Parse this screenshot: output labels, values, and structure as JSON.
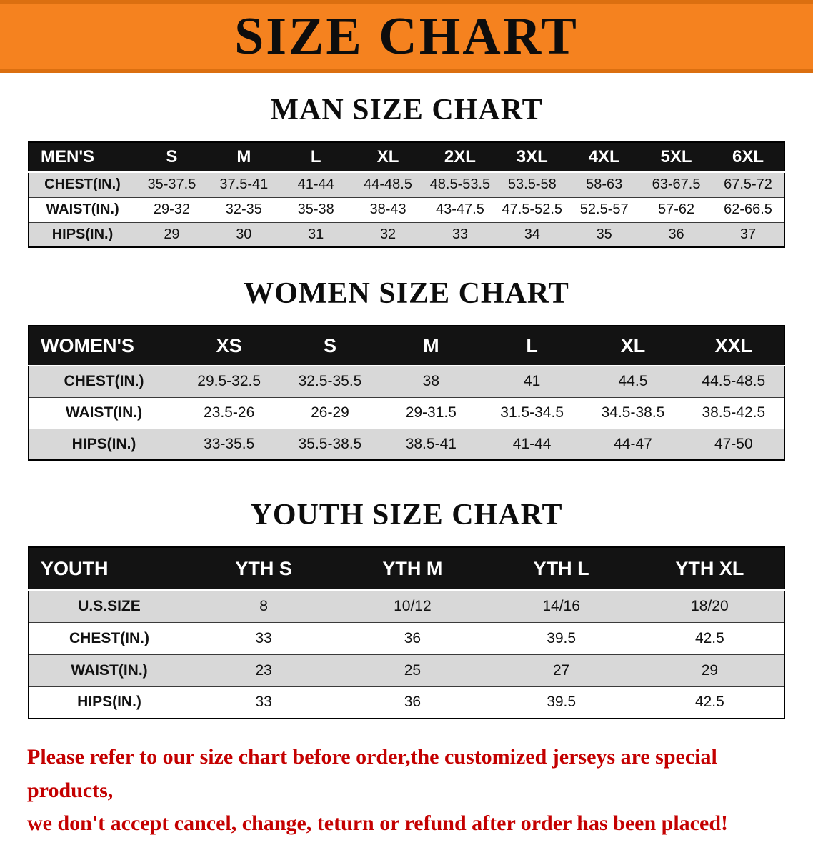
{
  "banner": {
    "title": "SIZE CHART"
  },
  "sections": [
    {
      "heading": "MAN SIZE CHART",
      "table": {
        "header": [
          "MEN'S",
          "S",
          "M",
          "L",
          "XL",
          "2XL",
          "3XL",
          "4XL",
          "5XL",
          "6XL"
        ],
        "rows": [
          [
            "CHEST(IN.)",
            "35-37.5",
            "37.5-41",
            "41-44",
            "44-48.5",
            "48.5-53.5",
            "53.5-58",
            "58-63",
            "63-67.5",
            "67.5-72"
          ],
          [
            "WAIST(IN.)",
            "29-32",
            "32-35",
            "35-38",
            "38-43",
            "43-47.5",
            "47.5-52.5",
            "52.5-57",
            "57-62",
            "62-66.5"
          ],
          [
            "HIPS(IN.)",
            "29",
            "30",
            "31",
            "32",
            "33",
            "34",
            "35",
            "36",
            "37"
          ]
        ]
      }
    },
    {
      "heading": "WOMEN SIZE CHART",
      "table": {
        "header": [
          "WOMEN'S",
          "XS",
          "S",
          "M",
          "L",
          "XL",
          "XXL"
        ],
        "rows": [
          [
            "CHEST(IN.)",
            "29.5-32.5",
            "32.5-35.5",
            "38",
            "41",
            "44.5",
            "44.5-48.5"
          ],
          [
            "WAIST(IN.)",
            "23.5-26",
            "26-29",
            "29-31.5",
            "31.5-34.5",
            "34.5-38.5",
            "38.5-42.5"
          ],
          [
            "HIPS(IN.)",
            "33-35.5",
            "35.5-38.5",
            "38.5-41",
            "41-44",
            "44-47",
            "47-50"
          ]
        ]
      }
    },
    {
      "heading": "YOUTH SIZE CHART",
      "table": {
        "header": [
          "YOUTH",
          "YTH S",
          "YTH M",
          "YTH L",
          "YTH XL"
        ],
        "rows": [
          [
            "U.S.SIZE",
            "8",
            "10/12",
            "14/16",
            "18/20"
          ],
          [
            "CHEST(IN.)",
            "33",
            "36",
            "39.5",
            "42.5"
          ],
          [
            "WAIST(IN.)",
            "23",
            "25",
            "27",
            "29"
          ],
          [
            "HIPS(IN.)",
            "33",
            "36",
            "39.5",
            "42.5"
          ]
        ]
      }
    }
  ],
  "disclaimer": {
    "line1": "Please refer to our size chart before order,the customized jerseys are special products,",
    "line2": "we don't accept cancel, change, teturn or refund after order has been placed!"
  },
  "colors": {
    "banner_orange": "#F5821F",
    "header_black": "#131313",
    "row_gray": "#D8D8D8",
    "disclaimer_red": "#C40000"
  }
}
